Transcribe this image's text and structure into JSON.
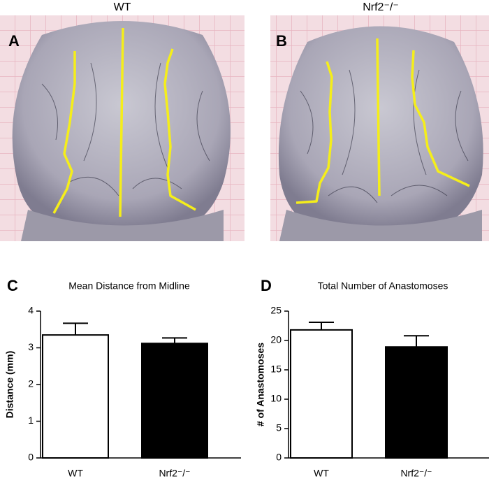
{
  "figure": {
    "photo_panel_labels": [
      "A",
      "B"
    ],
    "photo_titles": [
      "WT",
      "Nrf2⁻/⁻"
    ]
  },
  "chart_data": [
    {
      "type": "bar",
      "panel_label": "C",
      "title": "Mean Distance from Midline",
      "y_label": "Distance (mm)",
      "categories": [
        "WT",
        "Nrf2⁻/⁻"
      ],
      "values": [
        3.35,
        3.12
      ],
      "errors": [
        0.32,
        0.15
      ],
      "colors": [
        "#ffffff",
        "#000000"
      ],
      "ylim": [
        0,
        4
      ],
      "yticks": [
        0,
        1,
        2,
        3,
        4
      ]
    },
    {
      "type": "bar",
      "panel_label": "D",
      "title": "Total Number of Anastomoses",
      "y_label": "# of Anastomoses",
      "categories": [
        "WT",
        "Nrf2⁻/⁻"
      ],
      "values": [
        21.8,
        18.9
      ],
      "errors": [
        1.3,
        1.9
      ],
      "colors": [
        "#ffffff",
        "#000000"
      ],
      "ylim": [
        0,
        25
      ],
      "yticks": [
        0,
        5,
        10,
        15,
        20,
        25
      ]
    }
  ]
}
